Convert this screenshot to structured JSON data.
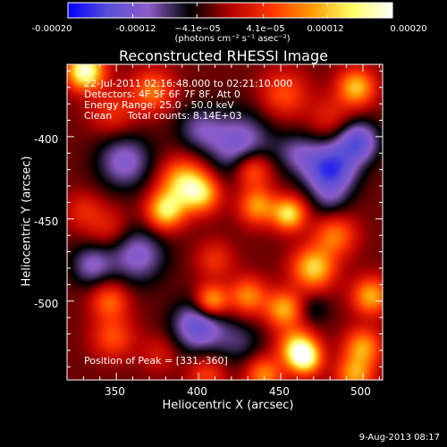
{
  "chart_data": {
    "type": "heatmap",
    "title": "Reconstructed RHESSI Image",
    "xlabel": "Heliocentric X (arcsec)",
    "ylabel": "Heliocentric Y (arcsec)",
    "xlim": [
      320,
      512
    ],
    "ylim": [
      -548,
      -356
    ],
    "x_ticks": [
      350,
      400,
      450,
      500
    ],
    "y_ticks": [
      -400,
      -450,
      -500
    ],
    "colorbar": {
      "range": [
        -0.0002,
        0.0002
      ],
      "tick_values": [
        -0.0002,
        -0.00012,
        -4.1e-05,
        4.1e-05,
        0.00012,
        0.0002
      ],
      "tick_labels": [
        "-0.00020",
        "-0.00012",
        "−4.1e−05",
        "4.1e−05",
        "0.00012",
        "0.00020"
      ],
      "unit": "(photons cm⁻² s⁻¹ asec⁻²)",
      "colors": [
        "#0000ff",
        "#5a4fd6",
        "#8c5cc8",
        "#000000",
        "#b30000",
        "#ff3300",
        "#ff9900",
        "#ffff66",
        "#ffffff"
      ]
    },
    "annotations": {
      "time_range": "22-Jul-2011 02:16:48.000 to 02:21:10.000",
      "detectors": "Detectors: 4F 5F 6F 7F 8F, Att 0",
      "energy": "Energy Range: 25.0 - 50.0 keV",
      "clean": "Clean     Total counts: 8.14E+03",
      "peak": "Position of Peak = [331,-360]"
    },
    "blobs": [
      {
        "x": 331,
        "y": -360,
        "value": 0.00021,
        "sigma": 8
      },
      {
        "x": 348,
        "y": -385,
        "value": 6e-05,
        "sigma": 10
      },
      {
        "x": 372,
        "y": -372,
        "value": 0.0001,
        "sigma": 9
      },
      {
        "x": 452,
        "y": -374,
        "value": 8e-05,
        "sigma": 10
      },
      {
        "x": 496,
        "y": -370,
        "value": 0.00014,
        "sigma": 8
      },
      {
        "x": 480,
        "y": -388,
        "value": 5e-05,
        "sigma": 9
      },
      {
        "x": 391,
        "y": -428,
        "value": 0.00015,
        "sigma": 10
      },
      {
        "x": 380,
        "y": -445,
        "value": 0.00016,
        "sigma": 8
      },
      {
        "x": 402,
        "y": -435,
        "value": 0.00012,
        "sigma": 8
      },
      {
        "x": 433,
        "y": -420,
        "value": 0.00011,
        "sigma": 8
      },
      {
        "x": 436,
        "y": -442,
        "value": 0.00012,
        "sigma": 8
      },
      {
        "x": 455,
        "y": -447,
        "value": 0.00016,
        "sigma": 7
      },
      {
        "x": 345,
        "y": -455,
        "value": 5e-05,
        "sigma": 9
      },
      {
        "x": 330,
        "y": -445,
        "value": 5e-05,
        "sigma": 8
      },
      {
        "x": 470,
        "y": -480,
        "value": 0.00015,
        "sigma": 9
      },
      {
        "x": 483,
        "y": -460,
        "value": 0.0001,
        "sigma": 9
      },
      {
        "x": 505,
        "y": -497,
        "value": 0.00013,
        "sigma": 8
      },
      {
        "x": 452,
        "y": -505,
        "value": 0.00013,
        "sigma": 8
      },
      {
        "x": 430,
        "y": -497,
        "value": 0.00011,
        "sigma": 8
      },
      {
        "x": 408,
        "y": -500,
        "value": 0.00014,
        "sigma": 7
      },
      {
        "x": 410,
        "y": -475,
        "value": 6e-05,
        "sigma": 8
      },
      {
        "x": 346,
        "y": -500,
        "value": 9e-05,
        "sigma": 8
      },
      {
        "x": 348,
        "y": -522,
        "value": 8e-05,
        "sigma": 9
      },
      {
        "x": 376,
        "y": -532,
        "value": 4e-05,
        "sigma": 8
      },
      {
        "x": 460,
        "y": -528,
        "value": 0.00014,
        "sigma": 8
      },
      {
        "x": 465,
        "y": -535,
        "value": 0.00016,
        "sigma": 7
      },
      {
        "x": 500,
        "y": -528,
        "value": 0.00012,
        "sigma": 8
      },
      {
        "x": 495,
        "y": -545,
        "value": 0.00012,
        "sigma": 8
      },
      {
        "x": 440,
        "y": -545,
        "value": 0.00011,
        "sigma": 8
      },
      {
        "x": 405,
        "y": -545,
        "value": 7e-05,
        "sigma": 8
      },
      {
        "x": 425,
        "y": -405,
        "value": -0.0001,
        "sigma": 14
      },
      {
        "x": 480,
        "y": -420,
        "value": -0.00015,
        "sigma": 11
      },
      {
        "x": 497,
        "y": -403,
        "value": -0.00012,
        "sigma": 9
      },
      {
        "x": 355,
        "y": -415,
        "value": -9e-05,
        "sigma": 12
      },
      {
        "x": 363,
        "y": -472,
        "value": -9e-05,
        "sigma": 12
      },
      {
        "x": 470,
        "y": -505,
        "value": -4e-05,
        "sigma": 7
      },
      {
        "x": 400,
        "y": -515,
        "value": -0.00012,
        "sigma": 11
      },
      {
        "x": 335,
        "y": -478,
        "value": -8e-05,
        "sigma": 9
      },
      {
        "x": 400,
        "y": -395,
        "value": -6e-05,
        "sigma": 10
      },
      {
        "x": 460,
        "y": -410,
        "value": -6e-05,
        "sigma": 9
      },
      {
        "x": 480,
        "y": -440,
        "value": -4e-05,
        "sigma": 8
      },
      {
        "x": 425,
        "y": -525,
        "value": -5e-05,
        "sigma": 10
      }
    ]
  },
  "footer": {
    "timestamp": "9-Aug-2013 08:17"
  }
}
